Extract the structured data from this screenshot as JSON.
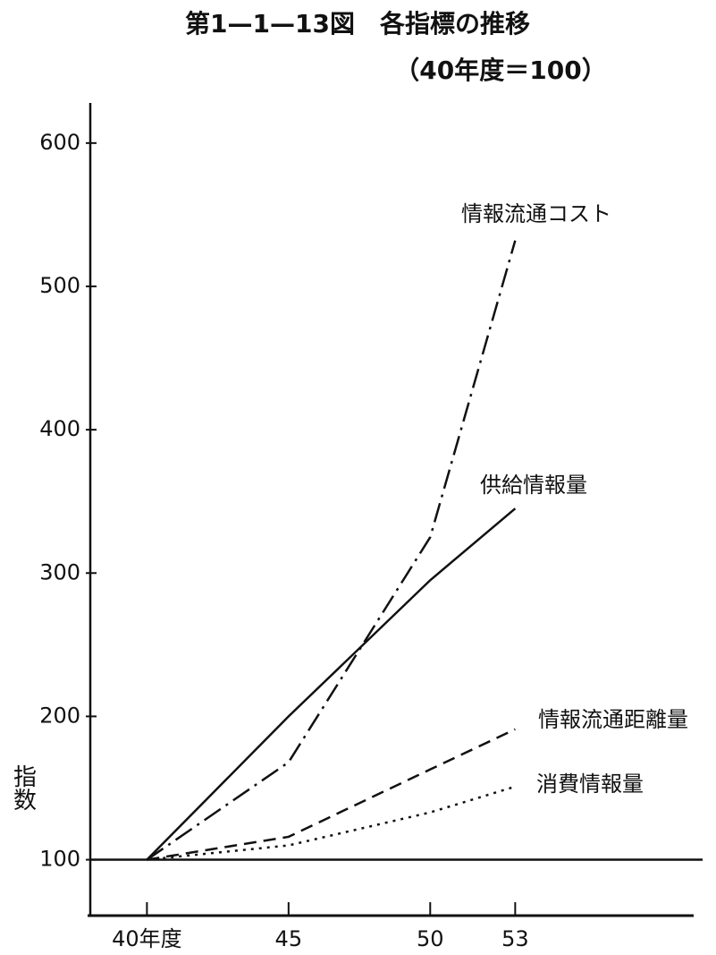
{
  "chart_data": {
    "type": "line",
    "title": "第1—1—13図　各指標の推移",
    "subtitle": "（40年度＝100）",
    "y_label": "指数",
    "x": [
      40,
      45,
      50,
      53
    ],
    "series": [
      {
        "name": "情報流通コスト",
        "color": "#111111",
        "line_style": "dashdot",
        "values": [
          100,
          168,
          325,
          532
        ]
      },
      {
        "name": "供給情報量",
        "color": "#111111",
        "line_style": "solid",
        "values": [
          100,
          200,
          295,
          345
        ]
      },
      {
        "name": "情報流通距離量",
        "color": "#111111",
        "line_style": "dashed",
        "values": [
          100,
          116,
          163,
          191
        ]
      },
      {
        "name": "消費情報量",
        "color": "#111111",
        "line_style": "dotted",
        "values": [
          100,
          110,
          133,
          151
        ]
      }
    ],
    "baseline": 100,
    "xlim": [
      38,
      59.3
    ],
    "xticks": [
      {
        "value": 40,
        "label": "40年度"
      },
      45,
      50,
      53
    ],
    "ylim": [
      61,
      628
    ],
    "yticks": [
      100,
      200,
      300,
      400,
      500,
      600
    ],
    "grid": false
  }
}
